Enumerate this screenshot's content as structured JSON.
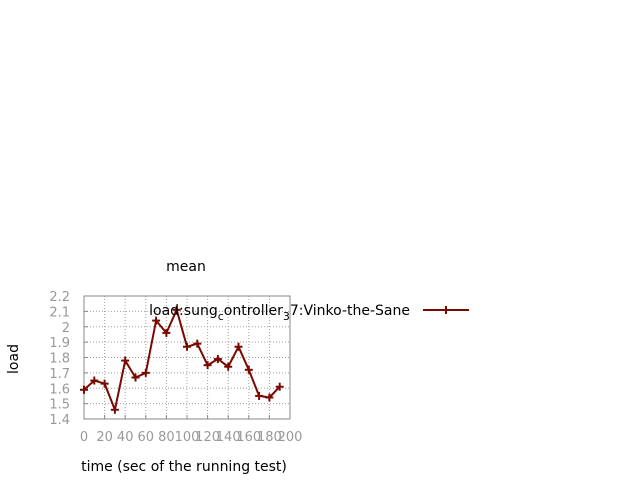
{
  "chart_data": {
    "type": "line",
    "title": "mean",
    "xlabel": "time (sec of the running test)",
    "ylabel": "load",
    "xlim": [
      0,
      200
    ],
    "ylim": [
      1.4,
      2.2
    ],
    "xticks": [
      "0",
      "20",
      "40",
      "60",
      "80",
      "100",
      "120",
      "140",
      "160",
      "180",
      "200"
    ],
    "yticks": [
      "1.4",
      "1.5",
      "1.6",
      "1.7",
      "1.8",
      "1.9",
      "2",
      "2.1",
      "2.2"
    ],
    "grid": true,
    "legend_position": "top-right",
    "legend": {
      "base": "load:sung",
      "sub1": "c",
      "mid": "ontroller",
      "sub2": "3",
      "tail": "7:Vinko-the-Sane"
    },
    "series": [
      {
        "name": "load:sung_controller_37:Vinko-the-Sane",
        "color": "#7a0a00",
        "x": [
          0,
          10,
          20,
          30,
          40,
          50,
          60,
          70,
          80,
          90,
          100,
          110,
          120,
          130,
          140,
          150,
          160,
          170,
          180,
          190
        ],
        "y": [
          1.59,
          1.65,
          1.63,
          1.46,
          1.78,
          1.67,
          1.7,
          2.04,
          1.96,
          2.11,
          1.87,
          1.89,
          1.75,
          1.79,
          1.74,
          1.87,
          1.72,
          1.55,
          1.54,
          1.61
        ]
      }
    ]
  }
}
